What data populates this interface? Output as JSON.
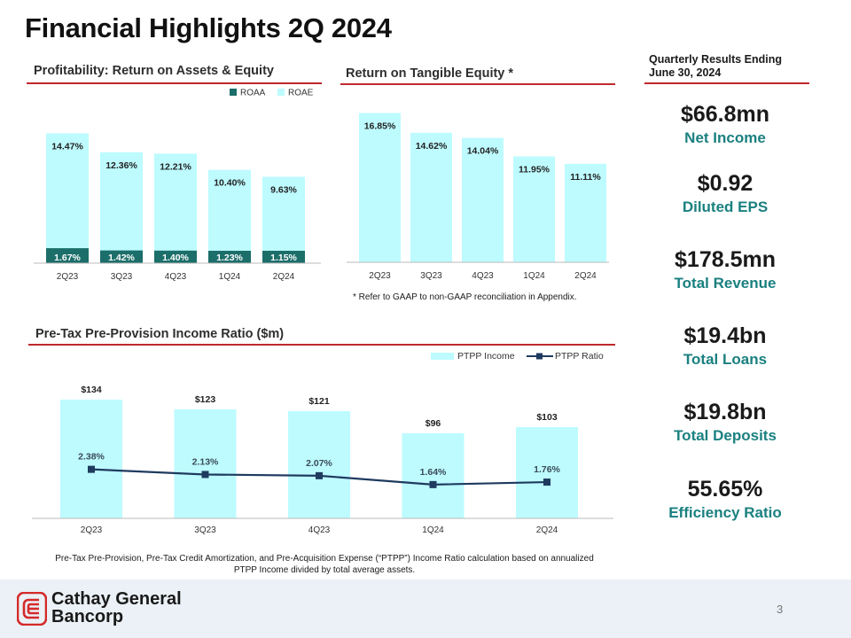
{
  "title": "Financial Highlights 2Q 2024",
  "colors": {
    "accent_red": "#c0282d",
    "bar_light": "#bdfbff",
    "bar_dark": "#1c6e6a",
    "line_navy": "#1f3a5f",
    "kpi_teal": "#1b8080"
  },
  "sections": {
    "profitability": "Profitability: Return on Assets & Equity",
    "rote": "Return on Tangible Equity *",
    "pptp": "Pre-Tax Pre-Provision Income Ratio ($m)"
  },
  "kpi_header": {
    "line1": "Quarterly Results Ending",
    "line2": "June 30, 2024"
  },
  "kpis": [
    {
      "value": "$66.8mn",
      "label": "Net Income"
    },
    {
      "value": "$0.92",
      "label": "Diluted EPS"
    },
    {
      "value": "$178.5mn",
      "label": "Total Revenue"
    },
    {
      "value": "$19.4bn",
      "label": "Total Loans"
    },
    {
      "value": "$19.8bn",
      "label": "Total Deposits"
    },
    {
      "value": "55.65%",
      "label": "Efficiency Ratio"
    }
  ],
  "rote_note": "* Refer to GAAP to non-GAAP reconciliation in Appendix.",
  "footnote": "Pre-Tax Pre-Provision, Pre-Tax Credit Amortization, and Pre-Acquisition Expense (“PTPP”) Income Ratio calculation based on annualized PTPP  Income divided by total average assets.",
  "company": {
    "line1": "Cathay General",
    "line2": "Bancorp"
  },
  "page_number": "3",
  "chart_data": [
    {
      "id": "roa_roe",
      "type": "bar",
      "categories": [
        "2Q23",
        "3Q23",
        "4Q23",
        "1Q24",
        "2Q24"
      ],
      "series": [
        {
          "name": "ROAA",
          "values": [
            1.67,
            1.42,
            1.4,
            1.23,
            1.15
          ],
          "labels": [
            "1.67%",
            "1.42%",
            "1.40%",
            "1.23%",
            "1.15%"
          ]
        },
        {
          "name": "ROAE",
          "values": [
            14.47,
            12.36,
            12.21,
            10.4,
            9.63
          ],
          "labels": [
            "14.47%",
            "12.36%",
            "12.21%",
            "10.40%",
            "9.63%"
          ]
        }
      ],
      "legend": [
        "ROAA",
        "ROAE"
      ],
      "ylim": [
        0,
        16
      ]
    },
    {
      "id": "rote",
      "type": "bar",
      "categories": [
        "2Q23",
        "3Q23",
        "4Q23",
        "1Q24",
        "2Q24"
      ],
      "series": [
        {
          "name": "ROTE",
          "values": [
            16.85,
            14.62,
            14.04,
            11.95,
            11.11
          ],
          "labels": [
            "16.85%",
            "14.62%",
            "14.04%",
            "11.95%",
            "11.11%"
          ]
        }
      ],
      "ylim": [
        0,
        18
      ]
    },
    {
      "id": "ptpp",
      "type": "bar",
      "categories": [
        "2Q23",
        "3Q23",
        "4Q23",
        "1Q24",
        "2Q24"
      ],
      "series": [
        {
          "name": "PTPP Income",
          "values": [
            134,
            123,
            121,
            96,
            103
          ],
          "labels": [
            "$134",
            "$123",
            "$121",
            "$96",
            "$103"
          ]
        },
        {
          "name": "PTPP Ratio",
          "values": [
            2.38,
            2.13,
            2.07,
            1.64,
            1.76
          ],
          "labels": [
            "2.38%",
            "2.13%",
            "2.07%",
            "1.64%",
            "1.76%"
          ]
        }
      ],
      "legend": [
        "PTPP Income",
        "PTPP Ratio"
      ],
      "ylim": [
        0,
        150
      ],
      "ratio_ylim": [
        0,
        6.45
      ]
    }
  ]
}
